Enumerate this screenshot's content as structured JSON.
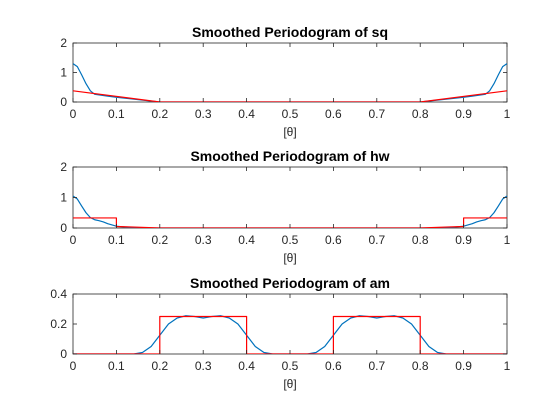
{
  "chart_data": [
    {
      "type": "line",
      "title": "Smoothed Periodogram of sq",
      "xlabel": "[θ]",
      "ylabel": "",
      "xlim": [
        0,
        1
      ],
      "ylim": [
        0,
        2
      ],
      "xticks": [
        0,
        0.1,
        0.2,
        0.3,
        0.4,
        0.5,
        0.6,
        0.7,
        0.8,
        0.9,
        1
      ],
      "xtick_labels": [
        "0",
        "0.1",
        "0.2",
        "0.3",
        "0.4",
        "0.5",
        "0.6",
        "0.7",
        "0.8",
        "0.9",
        "1"
      ],
      "yticks": [
        0,
        1,
        2
      ],
      "ytick_labels": [
        "0",
        "1",
        "2"
      ],
      "grid": false,
      "series": [
        {
          "color": "#0072BD",
          "x": [
            0,
            0.01,
            0.02,
            0.03,
            0.04,
            0.05,
            0.06,
            0.08,
            0.1,
            0.2,
            0.5,
            0.8,
            0.9,
            0.92,
            0.94,
            0.95,
            0.96,
            0.97,
            0.98,
            0.99,
            1
          ],
          "y": [
            1.3,
            1.2,
            0.92,
            0.62,
            0.38,
            0.26,
            0.24,
            0.2,
            0.16,
            0.0,
            0.0,
            0.0,
            0.16,
            0.2,
            0.24,
            0.26,
            0.38,
            0.62,
            0.92,
            1.2,
            1.3
          ]
        },
        {
          "color": "#FF0000",
          "x": [
            0,
            0.2,
            0.8,
            1
          ],
          "y": [
            0.38,
            0.0,
            0.0,
            0.38
          ]
        }
      ]
    },
    {
      "type": "line",
      "title": "Smoothed Periodogram of hw",
      "xlabel": "[θ]",
      "ylabel": "",
      "xlim": [
        0,
        1
      ],
      "ylim": [
        0,
        2
      ],
      "xticks": [
        0,
        0.1,
        0.2,
        0.3,
        0.4,
        0.5,
        0.6,
        0.7,
        0.8,
        0.9,
        1
      ],
      "xtick_labels": [
        "0",
        "0.1",
        "0.2",
        "0.3",
        "0.4",
        "0.5",
        "0.6",
        "0.7",
        "0.8",
        "0.9",
        "1"
      ],
      "yticks": [
        0,
        1,
        2
      ],
      "ytick_labels": [
        "0",
        "1",
        "2"
      ],
      "grid": false,
      "series": [
        {
          "color": "#0072BD",
          "x": [
            0,
            0.01,
            0.02,
            0.03,
            0.04,
            0.05,
            0.06,
            0.07,
            0.08,
            0.1,
            0.12,
            0.14,
            0.16,
            0.18,
            0.2,
            0.5,
            0.8,
            0.82,
            0.84,
            0.86,
            0.88,
            0.9,
            0.92,
            0.93,
            0.94,
            0.95,
            0.96,
            0.97,
            0.98,
            0.99,
            1
          ],
          "y": [
            1.05,
            0.95,
            0.72,
            0.5,
            0.34,
            0.27,
            0.24,
            0.2,
            0.14,
            0.06,
            0.03,
            0.01,
            0.005,
            0.002,
            0.0,
            0.0,
            0.0,
            0.002,
            0.005,
            0.01,
            0.03,
            0.06,
            0.14,
            0.2,
            0.24,
            0.27,
            0.34,
            0.5,
            0.72,
            0.95,
            1.05
          ]
        },
        {
          "color": "#FF0000",
          "x": [
            0,
            0.1,
            0.1,
            0.2,
            0.8,
            0.9,
            0.9,
            1
          ],
          "y": [
            0.33,
            0.33,
            0.05,
            0.0,
            0.0,
            0.05,
            0.33,
            0.33
          ]
        }
      ]
    },
    {
      "type": "line",
      "title": "Smoothed Periodogram of am",
      "xlabel": "[θ]",
      "ylabel": "",
      "xlim": [
        0,
        1
      ],
      "ylim": [
        0,
        0.4
      ],
      "xticks": [
        0,
        0.1,
        0.2,
        0.3,
        0.4,
        0.5,
        0.6,
        0.7,
        0.8,
        0.9,
        1
      ],
      "xtick_labels": [
        "0",
        "0.1",
        "0.2",
        "0.3",
        "0.4",
        "0.5",
        "0.6",
        "0.7",
        "0.8",
        "0.9",
        "1"
      ],
      "yticks": [
        0,
        0.2,
        0.4
      ],
      "ytick_labels": [
        "0",
        "0.2",
        "0.4"
      ],
      "grid": false,
      "series": [
        {
          "color": "#0072BD",
          "x": [
            0,
            0.14,
            0.16,
            0.18,
            0.2,
            0.22,
            0.24,
            0.26,
            0.28,
            0.3,
            0.32,
            0.34,
            0.36,
            0.38,
            0.4,
            0.42,
            0.44,
            0.46,
            0.5,
            0.54,
            0.56,
            0.58,
            0.6,
            0.62,
            0.64,
            0.66,
            0.68,
            0.7,
            0.72,
            0.74,
            0.76,
            0.78,
            0.8,
            0.82,
            0.84,
            0.86,
            1
          ],
          "y": [
            0,
            0.0,
            0.01,
            0.05,
            0.125,
            0.2,
            0.24,
            0.255,
            0.25,
            0.24,
            0.25,
            0.255,
            0.24,
            0.2,
            0.125,
            0.05,
            0.01,
            0.0,
            0.0,
            0.0,
            0.01,
            0.05,
            0.125,
            0.2,
            0.24,
            0.255,
            0.25,
            0.24,
            0.25,
            0.255,
            0.24,
            0.2,
            0.125,
            0.05,
            0.01,
            0.0,
            0.0
          ]
        },
        {
          "color": "#FF0000",
          "x": [
            0,
            0.2,
            0.2,
            0.4,
            0.4,
            0.6,
            0.6,
            0.8,
            0.8,
            1
          ],
          "y": [
            0,
            0,
            0.25,
            0.25,
            0,
            0,
            0.25,
            0.25,
            0,
            0
          ]
        }
      ]
    }
  ]
}
